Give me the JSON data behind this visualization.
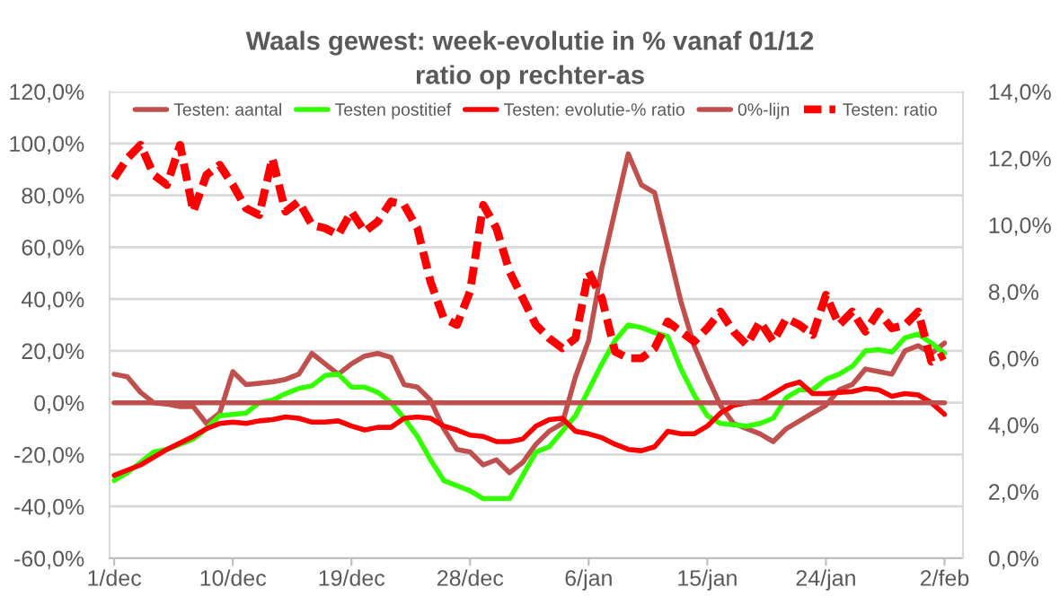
{
  "chart_data": {
    "type": "line",
    "title": "Waals gewest: week-evolutie in % vanaf 01/12",
    "subtitle": "ratio op rechter-as",
    "categories": [
      "1/dec",
      null,
      null,
      null,
      null,
      null,
      null,
      null,
      null,
      "10/dec",
      null,
      null,
      null,
      null,
      null,
      null,
      null,
      null,
      "19/dec",
      null,
      null,
      null,
      null,
      null,
      null,
      null,
      null,
      "28/dec",
      null,
      null,
      null,
      null,
      null,
      null,
      null,
      null,
      "6/jan",
      null,
      null,
      null,
      null,
      null,
      null,
      null,
      null,
      "15/jan",
      null,
      null,
      null,
      null,
      null,
      null,
      null,
      null,
      "24/jan",
      null,
      null,
      null,
      null,
      null,
      null,
      null,
      null,
      "2/feb"
    ],
    "series": [
      {
        "name": "Testen: aantal",
        "color": "#c0504d",
        "line_style": "solid",
        "values": [
          11,
          10,
          4,
          0,
          -0.5,
          -1.5,
          -1.5,
          -8,
          -4,
          12,
          7,
          7.5,
          8,
          9,
          11,
          19,
          15,
          11,
          15,
          18,
          19,
          17.5,
          7,
          6,
          1,
          -10,
          -18,
          -19,
          -24,
          -22,
          -27,
          -23,
          -16,
          -11,
          -8,
          10,
          24,
          52,
          74,
          96,
          84,
          81,
          60,
          39,
          22,
          10,
          -1,
          -8,
          -10,
          -12,
          -15,
          -10,
          -7,
          -4,
          -1,
          5,
          7,
          13,
          12,
          11,
          20,
          22,
          19,
          23
        ]
      },
      {
        "name": "Testen postitief",
        "color": "#33ff00",
        "line_style": "solid",
        "values": [
          -30,
          -27,
          -23,
          -19,
          -18,
          -16,
          -14,
          -10,
          -5,
          -4.5,
          -4,
          0,
          1,
          3.5,
          5.5,
          6.5,
          10.5,
          11,
          6,
          6,
          4,
          0,
          -6,
          -13,
          -22,
          -30,
          -32,
          -34,
          -37,
          -37,
          -37,
          -28,
          -19,
          -17,
          -11,
          -5,
          5,
          15,
          24,
          30,
          29,
          27,
          25.5,
          13,
          3,
          -5,
          -8,
          -8.5,
          -9,
          -8,
          -6,
          2,
          5,
          5,
          9,
          11,
          14,
          20,
          20.5,
          19.5,
          25,
          26.5,
          23,
          19
        ]
      },
      {
        "name": "Testen: evolutie-% ratio",
        "color": "#ff0000",
        "line_style": "solid",
        "values": [
          -28,
          -26,
          -24,
          -21,
          -18,
          -15.5,
          -13,
          -10,
          -8,
          -7.5,
          -8,
          -7,
          -6.5,
          -5.5,
          -6,
          -7.5,
          -7.5,
          -7,
          -9,
          -10.5,
          -9.5,
          -9.5,
          -6,
          -5.5,
          -6,
          -9,
          -10.5,
          -12.5,
          -13,
          -15,
          -15,
          -14,
          -9,
          -6.5,
          -6,
          -11,
          -12,
          -13.5,
          -16,
          -18,
          -18.5,
          -17,
          -11,
          -12,
          -12,
          -9,
          -4,
          -1,
          0,
          0.5,
          3.5,
          6.5,
          8,
          3.5,
          3.5,
          4,
          4.3,
          5.5,
          5,
          2.5,
          3.5,
          3,
          0,
          -4.5
        ]
      },
      {
        "name": "0%-lijn",
        "color": "#c0504d",
        "line_style": "solid",
        "values": [
          0,
          0,
          0,
          0,
          0,
          0,
          0,
          0,
          0,
          0,
          0,
          0,
          0,
          0,
          0,
          0,
          0,
          0,
          0,
          0,
          0,
          0,
          0,
          0,
          0,
          0,
          0,
          0,
          0,
          0,
          0,
          0,
          0,
          0,
          0,
          0,
          0,
          0,
          0,
          0,
          0,
          0,
          0,
          0,
          0,
          0,
          0,
          0,
          0,
          0,
          0,
          0,
          0,
          0,
          0,
          0,
          0,
          0,
          0,
          0,
          0,
          0,
          0,
          0
        ]
      },
      {
        "name": "Testen: ratio",
        "color": "#ff0000",
        "line_style": "dashed",
        "axis": "y2",
        "values": [
          11.4,
          12.0,
          12.4,
          11.5,
          11.2,
          12.4,
          10.4,
          11.5,
          11.8,
          11.2,
          10.5,
          10.3,
          12.0,
          10.4,
          10.7,
          10.0,
          9.9,
          9.7,
          10.4,
          9.8,
          10.1,
          10.7,
          10.6,
          9.9,
          8.3,
          7.2,
          7.0,
          8.0,
          10.6,
          9.9,
          8.6,
          7.8,
          7.0,
          6.6,
          6.3,
          6.6,
          8.6,
          7.8,
          6.2,
          6.0,
          6.0,
          6.3,
          7.1,
          6.8,
          6.5,
          6.9,
          7.4,
          6.8,
          6.4,
          7.1,
          6.5,
          7.2,
          7.0,
          6.7,
          7.9,
          7.0,
          7.4,
          6.8,
          7.4,
          6.9,
          7.0,
          7.4,
          5.9,
          6.1
        ]
      }
    ],
    "ylim": [
      -60,
      120
    ],
    "yticks": [
      {
        "value": -60,
        "label": "-60,0%"
      },
      {
        "value": -40,
        "label": "-40,0%"
      },
      {
        "value": -20,
        "label": "-20,0%"
      },
      {
        "value": 0,
        "label": "0,0%"
      },
      {
        "value": 20,
        "label": "20,0%"
      },
      {
        "value": 40,
        "label": "40,0%"
      },
      {
        "value": 60,
        "label": "60,0%"
      },
      {
        "value": 80,
        "label": "80,0%"
      },
      {
        "value": 100,
        "label": "100,0%"
      },
      {
        "value": 120,
        "label": "120,0%"
      }
    ],
    "y2lim": [
      0,
      14
    ],
    "y2ticks": [
      {
        "value": 0,
        "label": "0,0%"
      },
      {
        "value": 2,
        "label": "2,0%"
      },
      {
        "value": 4,
        "label": "4,0%"
      },
      {
        "value": 6,
        "label": "6,0%"
      },
      {
        "value": 8,
        "label": "8,0%"
      },
      {
        "value": 10,
        "label": "10,0%"
      },
      {
        "value": 12,
        "label": "12,0%"
      },
      {
        "value": 14,
        "label": "14,0%"
      }
    ],
    "grid": "y",
    "legend": "top"
  }
}
